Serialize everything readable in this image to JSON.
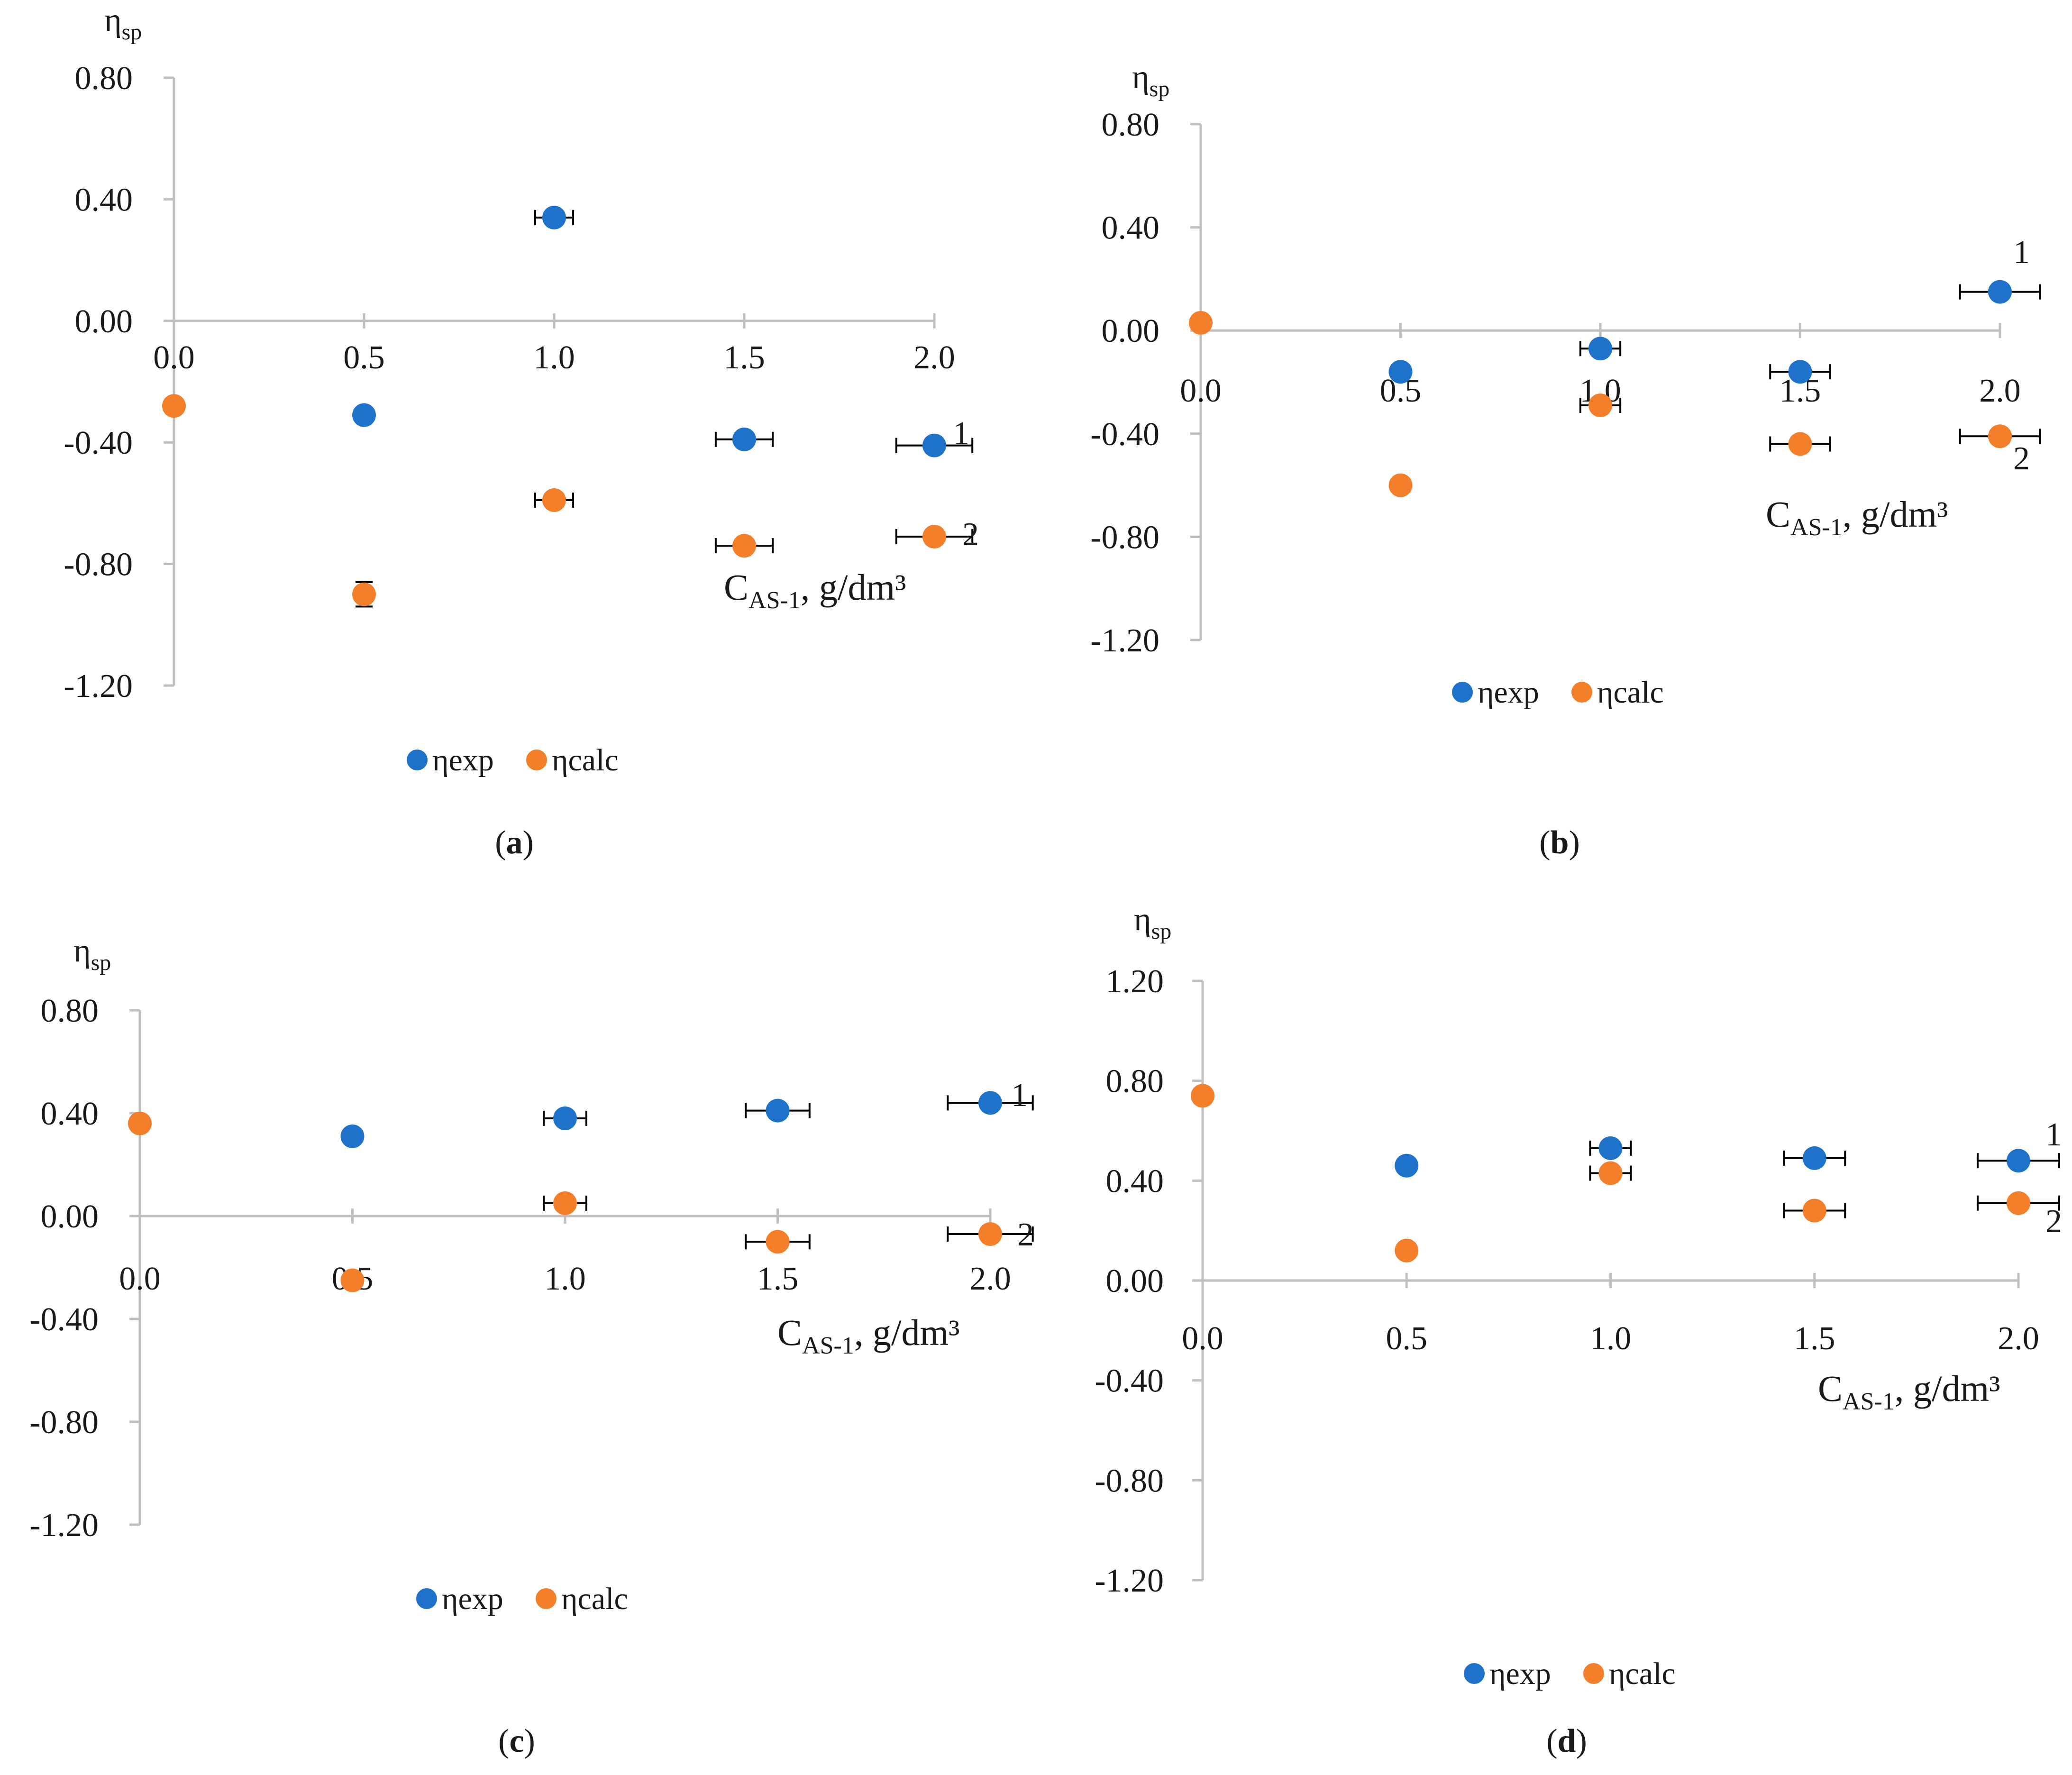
{
  "colors": {
    "exp": "#1f72c9",
    "calc": "#f47f2a",
    "axis": "#bfbfbf"
  },
  "legend": {
    "exp": "ηexp",
    "calc": "ηcalc"
  },
  "chart_data": [
    {
      "panel": "a",
      "type": "scatter",
      "caption": {
        "open": "(",
        "letter": "a",
        "close": ")"
      },
      "ylabel": {
        "main": "η",
        "sub": "sp"
      },
      "xlabel": {
        "main": "C",
        "sub": "AS-1",
        "rest": ", g/dm³"
      },
      "ylim": [
        -1.2,
        0.8
      ],
      "xlim": [
        0,
        2
      ],
      "yticks": [
        "0.80",
        "0.40",
        "0.00",
        "-0.40",
        "-0.80",
        "-1.20"
      ],
      "xticks": [
        "0.0",
        "0.5",
        "1.0",
        "1.5",
        "2.0"
      ],
      "curve_labels": [
        "1",
        "2"
      ],
      "series": [
        {
          "name": "ηexp",
          "points": [
            {
              "x": 0.5,
              "y": -0.31
            },
            {
              "x": 1.0,
              "y": 0.34,
              "xerr": 0.05
            },
            {
              "x": 1.5,
              "y": -0.39,
              "xerr": 0.075
            },
            {
              "x": 2.0,
              "y": -0.41,
              "xerr": 0.1
            }
          ]
        },
        {
          "name": "ηcalc",
          "points": [
            {
              "x": 0.0,
              "y": -0.28
            },
            {
              "x": 0.5,
              "y": -0.9,
              "yerr": 0.04
            },
            {
              "x": 1.0,
              "y": -0.59,
              "xerr": 0.05
            },
            {
              "x": 1.5,
              "y": -0.74,
              "xerr": 0.075
            },
            {
              "x": 2.0,
              "y": -0.71,
              "xerr": 0.1
            }
          ]
        }
      ]
    },
    {
      "panel": "b",
      "type": "scatter",
      "caption": {
        "open": "(",
        "letter": "b",
        "close": ")"
      },
      "ylabel": {
        "main": "η",
        "sub": "sp"
      },
      "xlabel": {
        "main": "C",
        "sub": "AS-1",
        "rest": ", g/dm³"
      },
      "ylim": [
        -1.2,
        0.8
      ],
      "xlim": [
        0,
        2
      ],
      "yticks": [
        "0.80",
        "0.40",
        "0.00",
        "-0.40",
        "-0.80",
        "-1.20"
      ],
      "xticks": [
        "0.0",
        "0.5",
        "1.0",
        "1.5",
        "2.0"
      ],
      "curve_labels": [
        "1",
        "2"
      ],
      "series": [
        {
          "name": "ηexp",
          "points": [
            {
              "x": 0.5,
              "y": -0.16
            },
            {
              "x": 1.0,
              "y": -0.07,
              "xerr": 0.05
            },
            {
              "x": 1.5,
              "y": -0.16,
              "xerr": 0.075
            },
            {
              "x": 2.0,
              "y": 0.15,
              "xerr": 0.1
            }
          ]
        },
        {
          "name": "ηcalc",
          "points": [
            {
              "x": 0.0,
              "y": 0.03
            },
            {
              "x": 0.5,
              "y": -0.6
            },
            {
              "x": 1.0,
              "y": -0.29,
              "xerr": 0.05
            },
            {
              "x": 1.5,
              "y": -0.44,
              "xerr": 0.075
            },
            {
              "x": 2.0,
              "y": -0.41,
              "xerr": 0.1
            }
          ]
        }
      ]
    },
    {
      "panel": "c",
      "type": "scatter",
      "caption": {
        "open": "(",
        "letter": "c",
        "close": ")"
      },
      "ylabel": {
        "main": "η",
        "sub": "sp"
      },
      "xlabel": {
        "main": "C",
        "sub": "AS-1",
        "rest": ", g/dm³"
      },
      "ylim": [
        -1.2,
        0.8
      ],
      "xlim": [
        0,
        2
      ],
      "yticks": [
        "0.80",
        "0.40",
        "0.00",
        "-0.40",
        "-0.80",
        "-1.20"
      ],
      "xticks": [
        "0.0",
        "0.5",
        "1.0",
        "1.5",
        "2.0"
      ],
      "curve_labels": [
        "1",
        "2"
      ],
      "series": [
        {
          "name": "ηexp",
          "points": [
            {
              "x": 0.5,
              "y": 0.31
            },
            {
              "x": 1.0,
              "y": 0.38,
              "xerr": 0.05
            },
            {
              "x": 1.5,
              "y": 0.41,
              "xerr": 0.075
            },
            {
              "x": 2.0,
              "y": 0.44,
              "xerr": 0.1
            }
          ]
        },
        {
          "name": "ηcalc",
          "points": [
            {
              "x": 0.0,
              "y": 0.36
            },
            {
              "x": 0.5,
              "y": -0.25
            },
            {
              "x": 1.0,
              "y": 0.05,
              "xerr": 0.05
            },
            {
              "x": 1.5,
              "y": -0.1,
              "xerr": 0.075
            },
            {
              "x": 2.0,
              "y": -0.07,
              "xerr": 0.1
            }
          ]
        }
      ]
    },
    {
      "panel": "d",
      "type": "scatter",
      "caption": {
        "open": "(",
        "letter": "d",
        "close": ")"
      },
      "ylabel": {
        "main": "η",
        "sub": "sp"
      },
      "xlabel": {
        "main": "C",
        "sub": "AS-1",
        "rest": ", g/dm³"
      },
      "ylim": [
        -1.2,
        1.2
      ],
      "xlim": [
        0,
        2
      ],
      "yticks": [
        "1.20",
        "0.80",
        "0.40",
        "0.00",
        "-0.40",
        "-0.80",
        "-1.20"
      ],
      "xticks": [
        "0.0",
        "0.5",
        "1.0",
        "1.5",
        "2.0"
      ],
      "curve_labels": [
        "1",
        "2"
      ],
      "series": [
        {
          "name": "ηexp",
          "points": [
            {
              "x": 0.5,
              "y": 0.46
            },
            {
              "x": 1.0,
              "y": 0.53,
              "xerr": 0.05
            },
            {
              "x": 1.5,
              "y": 0.49,
              "xerr": 0.075
            },
            {
              "x": 2.0,
              "y": 0.48,
              "xerr": 0.1
            }
          ]
        },
        {
          "name": "ηcalc",
          "points": [
            {
              "x": 0.0,
              "y": 0.74
            },
            {
              "x": 0.5,
              "y": 0.12
            },
            {
              "x": 1.0,
              "y": 0.43,
              "xerr": 0.05
            },
            {
              "x": 1.5,
              "y": 0.28,
              "xerr": 0.075
            },
            {
              "x": 2.0,
              "y": 0.31,
              "xerr": 0.1
            }
          ]
        }
      ]
    }
  ]
}
